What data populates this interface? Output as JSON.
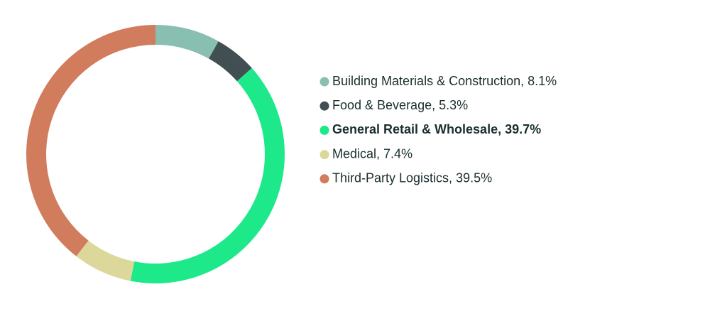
{
  "chart_data": {
    "type": "donut",
    "categories": [
      "Building Materials & Construction, 8.1%",
      "Food & Beverage, 5.3%",
      "General Retail & Wholesale, 39.7%",
      "Medical, 7.4%",
      "Third-Party Logistics, 39.5%"
    ],
    "values": [
      8.1,
      5.3,
      39.7,
      7.4,
      39.5
    ],
    "colors": [
      "#88bfb0",
      "#414f52",
      "#1de98b",
      "#dcd89c",
      "#d17c5c"
    ],
    "highlight": 2
  }
}
